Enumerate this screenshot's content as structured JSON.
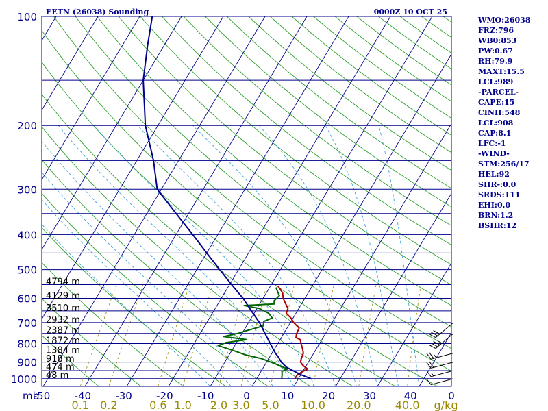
{
  "chart_data": {
    "type": "line",
    "title": "EETN (26038) Sounding",
    "time": "0000Z 10 OCT 25",
    "xlabel": "",
    "ylabel": "mb",
    "mixing_ratio_unit": "g/kg",
    "pressure_ticks": [
      "100",
      "200",
      "300",
      "400",
      "500",
      "600",
      "700",
      "800",
      "900",
      "1000"
    ],
    "temperature_ticks": [
      "-50",
      "-40",
      "-30",
      "-20",
      "-10",
      "0",
      "10",
      "20",
      "30",
      "40",
      "0"
    ],
    "mixing_ratio_ticks": [
      "0.1",
      "0.2",
      "0.6",
      "1.0",
      "2.0",
      "3.0",
      "5.0",
      "10.0",
      "20.0",
      "40.0"
    ],
    "isobars_mb": [
      100,
      150,
      200,
      250,
      300,
      350,
      400,
      450,
      500,
      550,
      600,
      650,
      700,
      750,
      800,
      850,
      900,
      950,
      1000
    ],
    "height_labels": [
      {
        "text": "4794 m",
        "p": 553
      },
      {
        "text": "4129 m",
        "p": 604
      },
      {
        "text": "3510 m",
        "p": 653
      },
      {
        "text": "2932 m",
        "p": 703
      },
      {
        "text": "2387 m",
        "p": 753
      },
      {
        "text": "1872 m",
        "p": 803
      },
      {
        "text": "1384 m",
        "p": 853
      },
      {
        "text": "918 m",
        "p": 902
      },
      {
        "text": "474 m",
        "p": 950
      },
      {
        "text": "48 m",
        "p": 1000
      }
    ],
    "series": [
      {
        "name": "",
        "role": "temperature",
        "color": "#b00000",
        "points": [
          [
            9.1,
            1000
          ],
          [
            9.2,
            975
          ],
          [
            10,
            955
          ],
          [
            10.8,
            940
          ],
          [
            9.2,
            920
          ],
          [
            8.1,
            900
          ],
          [
            7.8,
            880
          ],
          [
            7.5,
            850
          ],
          [
            6.6,
            825
          ],
          [
            5.6,
            800
          ],
          [
            4.8,
            780
          ],
          [
            3.5,
            770
          ],
          [
            3.1,
            752
          ],
          [
            2.9,
            725
          ],
          [
            0.8,
            700
          ],
          [
            -0.5,
            680
          ],
          [
            -2.3,
            660
          ],
          [
            -2.6,
            640
          ],
          [
            -3.9,
            620
          ],
          [
            -5.2,
            600
          ],
          [
            -6.1,
            580
          ],
          [
            -8.1,
            556
          ]
        ]
      },
      {
        "name": "",
        "role": "dewpoint",
        "color": "#006400",
        "points": [
          [
            6,
            1000
          ],
          [
            5.5,
            975
          ],
          [
            5,
            955
          ],
          [
            6,
            940
          ],
          [
            3.5,
            920
          ],
          [
            1,
            900
          ],
          [
            -1.8,
            880
          ],
          [
            -6,
            860
          ],
          [
            -9,
            840
          ],
          [
            -14,
            810
          ],
          [
            -12.5,
            795
          ],
          [
            -8,
            780
          ],
          [
            -14,
            765
          ],
          [
            -11,
            750
          ],
          [
            -9,
            735
          ],
          [
            -6,
            715
          ],
          [
            -6.5,
            695
          ],
          [
            -5,
            680
          ],
          [
            -6.5,
            660
          ],
          [
            -9.5,
            640
          ],
          [
            -13.5,
            628
          ],
          [
            -6.5,
            622
          ],
          [
            -7,
            610
          ],
          [
            -6.5,
            590
          ],
          [
            -8.5,
            560
          ]
        ]
      },
      {
        "name": "",
        "role": "parcel",
        "color": "#00008b",
        "points": [
          [
            13,
            1000
          ],
          [
            10,
            975
          ],
          [
            8,
            955
          ],
          [
            5.5,
            930
          ],
          [
            3.5,
            900
          ],
          [
            2,
            870
          ],
          [
            0.8,
            850
          ],
          [
            -1.8,
            800
          ],
          [
            -4.5,
            750
          ],
          [
            -7.4,
            700
          ],
          [
            -11,
            650
          ],
          [
            -14.8,
            600
          ],
          [
            -19.5,
            550
          ],
          [
            -24.5,
            500
          ],
          [
            -30,
            450
          ],
          [
            -36,
            400
          ],
          [
            -43,
            350
          ],
          [
            -51,
            300
          ],
          [
            -56,
            250
          ],
          [
            -63,
            200
          ],
          [
            -70,
            150
          ],
          [
            -74,
            120
          ],
          [
            -77,
            100
          ]
        ]
      }
    ],
    "wind_barbs": [
      {
        "p": 1000,
        "speed_kt": 10,
        "direction_deg": 255
      },
      {
        "p": 950,
        "speed_kt": 15,
        "direction_deg": 255
      },
      {
        "p": 900,
        "speed_kt": 20,
        "direction_deg": 255
      },
      {
        "p": 850,
        "speed_kt": 25,
        "direction_deg": 255
      },
      {
        "p": 700,
        "speed_kt": 30,
        "direction_deg": 230
      },
      {
        "p": 750,
        "speed_kt": 35,
        "direction_deg": 230
      }
    ]
  },
  "params": [
    "WMO:26038",
    "FRZ:796",
    "WB0:853",
    "PW:0.67",
    "RH:79.9",
    "MAXT:15.5",
    "LCL:989",
    "-PARCEL-",
    "CAPE:15",
    "CINH:548",
    "LCL:908",
    "CAP:8.1",
    "LFC:-1",
    "-WIND-",
    "STM:256/17",
    "HEL:92",
    "SHR-:0.0",
    "SRDS:111",
    "EHI:0.0",
    "BRN:1.2",
    "BSHR:12"
  ]
}
